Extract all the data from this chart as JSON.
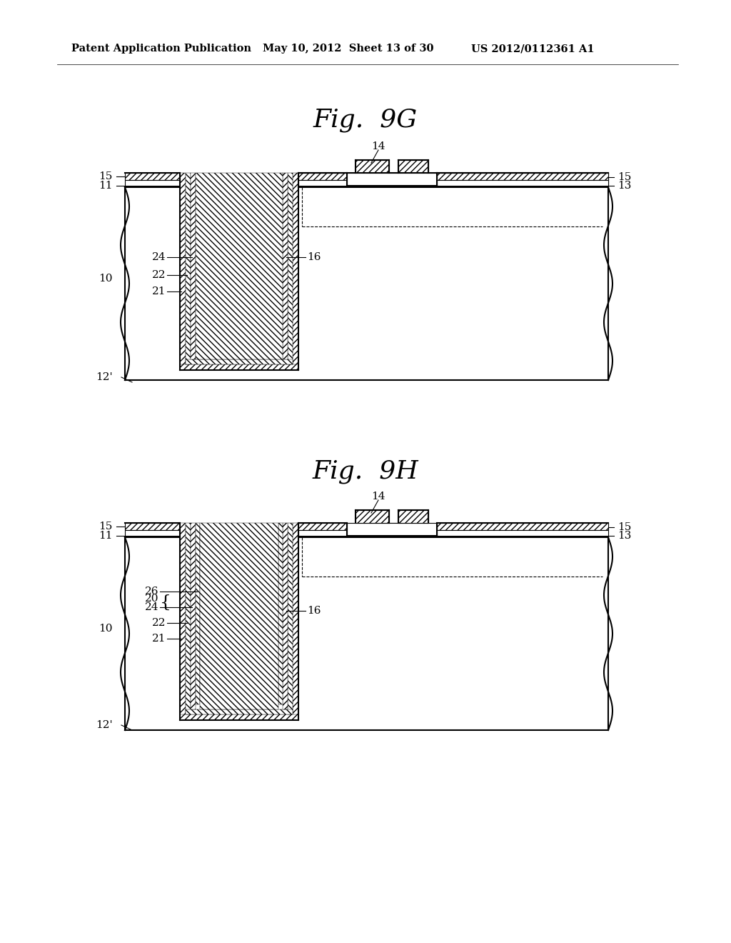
{
  "title_left": "Patent Application Publication",
  "title_mid": "May 10, 2012  Sheet 13 of 30",
  "title_right": "US 2012/0112361 A1",
  "fig1_label": "Fig.  9G",
  "fig2_label": "Fig.  9H",
  "bg_color": "#ffffff",
  "line_color": "#000000"
}
